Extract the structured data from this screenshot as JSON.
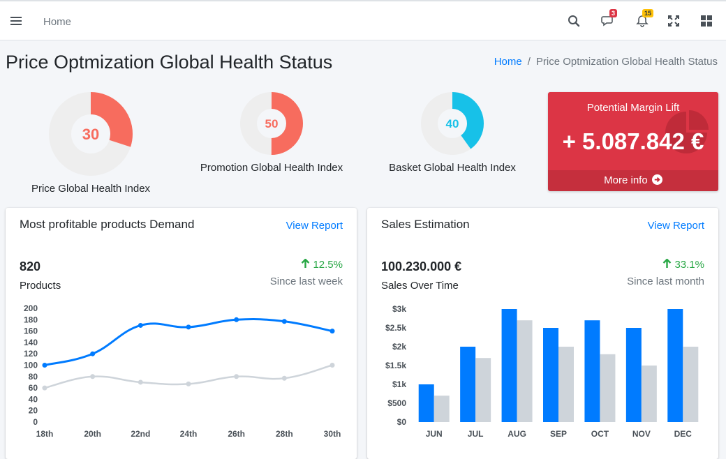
{
  "header": {
    "home_link": "Home",
    "badges": {
      "messages": "3",
      "notifications": "15"
    },
    "icons": [
      "bars-icon",
      "search-icon",
      "comments-icon",
      "bell-icon",
      "expand-icon",
      "grid-icon"
    ]
  },
  "page": {
    "title": "Price Optmization Global Health Status",
    "breadcrumb": {
      "home": "Home",
      "separator": "/",
      "current": "Price Optmization Global Health Status"
    }
  },
  "gauges": [
    {
      "id": "price",
      "value": 30,
      "label": "Price Global Health Index",
      "color": "#f76c5e",
      "track": "#eeeeee"
    },
    {
      "id": "promotion",
      "value": 50,
      "label": "Promotion Global Health Index",
      "color": "#f76c5e",
      "track": "#eeeeee"
    },
    {
      "id": "basket",
      "value": 40,
      "label": "Basket Global Health Index",
      "color": "#17c1e8",
      "track": "#eeeeee"
    }
  ],
  "margin_box": {
    "title": "Potential Margin Lift",
    "value": "+ 5.087.842 €",
    "more_info": "More info",
    "color": "#dc3545"
  },
  "products_card": {
    "title": "Most profitable products Demand",
    "view_report": "View Report",
    "big_number": "820",
    "sub_label": "Products",
    "change": "12.5%",
    "since": "Since last week"
  },
  "sales_card": {
    "title": "Sales Estimation",
    "view_report": "View Report",
    "big_number": "100.230.000 €",
    "sub_label": "Sales Over Time",
    "change": "33.1%",
    "since": "Since last month"
  },
  "chart_data": [
    {
      "type": "line",
      "x": [
        "18th",
        "20th",
        "22nd",
        "24th",
        "26th",
        "28th",
        "30th"
      ],
      "yticks": [
        "0",
        "20",
        "40",
        "60",
        "80",
        "100",
        "120",
        "140",
        "160",
        "180",
        "200"
      ],
      "ylim": [
        0,
        200
      ],
      "series": [
        {
          "color": "#007bff",
          "values": [
            100,
            120,
            170,
            167,
            180,
            177,
            160
          ]
        },
        {
          "color": "#ced4da",
          "values": [
            60,
            80,
            70,
            67,
            80,
            77,
            100
          ]
        }
      ]
    },
    {
      "type": "bar",
      "categories": [
        "JUN",
        "JUL",
        "AUG",
        "SEP",
        "OCT",
        "NOV",
        "DEC"
      ],
      "yticks": [
        "$0",
        "$500",
        "$1k",
        "$1.5k",
        "$2k",
        "$2.5k",
        "$3k"
      ],
      "ylim": [
        0,
        3000
      ],
      "series": [
        {
          "color": "#007bff",
          "values": [
            1000,
            2000,
            3000,
            2500,
            2700,
            2500,
            3000
          ]
        },
        {
          "color": "#ced4da",
          "values": [
            700,
            1700,
            2700,
            2000,
            1800,
            1500,
            2000
          ]
        }
      ]
    }
  ]
}
